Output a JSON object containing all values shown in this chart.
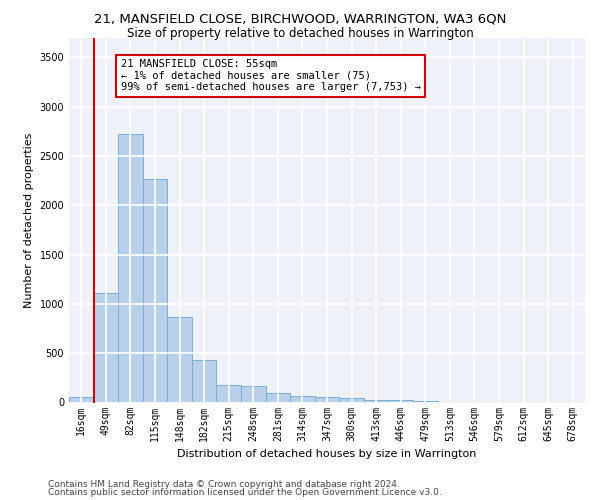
{
  "title1": "21, MANSFIELD CLOSE, BIRCHWOOD, WARRINGTON, WA3 6QN",
  "title2": "Size of property relative to detached houses in Warrington",
  "xlabel": "Distribution of detached houses by size in Warrington",
  "ylabel": "Number of detached properties",
  "categories": [
    "16sqm",
    "49sqm",
    "82sqm",
    "115sqm",
    "148sqm",
    "182sqm",
    "215sqm",
    "248sqm",
    "281sqm",
    "314sqm",
    "347sqm",
    "380sqm",
    "413sqm",
    "446sqm",
    "479sqm",
    "513sqm",
    "546sqm",
    "579sqm",
    "612sqm",
    "645sqm",
    "678sqm"
  ],
  "values": [
    55,
    1115,
    2720,
    2270,
    870,
    430,
    175,
    165,
    95,
    65,
    55,
    45,
    30,
    25,
    20,
    5,
    5,
    5,
    5,
    5,
    5
  ],
  "bar_color": "#b8d0ea",
  "bar_edge_color": "#7aadd4",
  "vline_color": "#cc0000",
  "annotation_text": "21 MANSFIELD CLOSE: 55sqm\n← 1% of detached houses are smaller (75)\n99% of semi-detached houses are larger (7,753) →",
  "annotation_box_color": "#ffffff",
  "annotation_box_edge_color": "#cc0000",
  "ylim": [
    0,
    3700
  ],
  "yticks": [
    0,
    500,
    1000,
    1500,
    2000,
    2500,
    3000,
    3500
  ],
  "footer1": "Contains HM Land Registry data © Crown copyright and database right 2024.",
  "footer2": "Contains public sector information licensed under the Open Government Licence v3.0.",
  "bg_color": "#eef2f8",
  "grid_color": "#ffffff",
  "title1_fontsize": 9.5,
  "title2_fontsize": 8.5,
  "xlabel_fontsize": 8,
  "ylabel_fontsize": 8,
  "tick_fontsize": 7,
  "footer_fontsize": 6.5,
  "ann_fontsize": 7.5
}
